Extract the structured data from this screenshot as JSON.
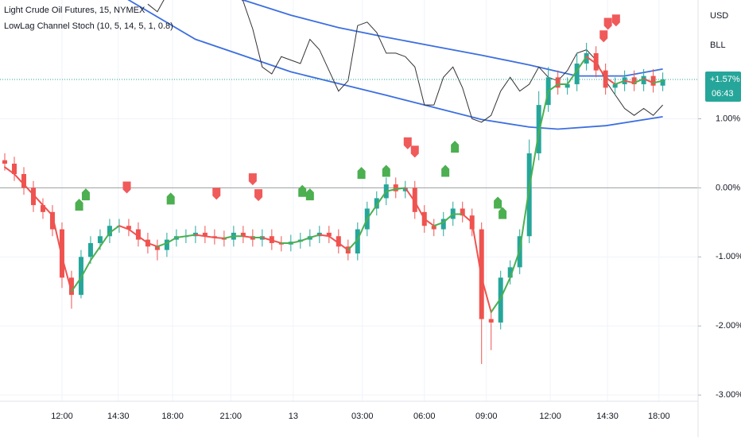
{
  "chart_data": {
    "type": "candlestick",
    "title": "Light Crude Oil Futures, 15, NYMEX",
    "indicator": "LowLag Channel Stoch (10, 5, 14, 5, 1, 0.8)",
    "currency": "USD",
    "scale_label": "BLL",
    "countdown": "06:43",
    "last_price": {
      "value": 1.57,
      "label": "+1.57%"
    },
    "up_color": "#26a69a",
    "down_color": "#ef5350",
    "open": [
      0.4,
      0.35,
      0.2,
      0.0,
      -0.25,
      -0.35,
      -0.6,
      -1.3,
      -1.55,
      -1.0,
      -0.8,
      -0.7,
      -0.55,
      -0.55,
      -0.6,
      -0.75,
      -0.85,
      -0.9,
      -0.75,
      -0.7,
      -0.7,
      -0.65,
      -0.7,
      -0.72,
      -0.75,
      -0.65,
      -0.7,
      -0.75,
      -0.7,
      -0.8,
      -0.82,
      -0.78,
      -0.75,
      -0.7,
      -0.65,
      -0.7,
      -0.85,
      -0.95,
      -0.6,
      -0.3,
      -0.15,
      0.05,
      -0.05,
      0.0,
      -0.35,
      -0.55,
      -0.6,
      -0.45,
      -0.3,
      -0.4,
      -0.6,
      -1.9,
      -1.95,
      -1.3,
      -1.15,
      -0.7,
      0.5,
      1.2,
      1.6,
      1.45,
      1.5,
      1.8,
      1.95,
      1.7,
      1.45,
      1.5,
      1.6,
      1.5,
      1.62,
      1.48
    ],
    "high": [
      0.5,
      0.45,
      0.3,
      0.1,
      -0.15,
      -0.25,
      -0.5,
      -1.2,
      -0.9,
      -0.7,
      -0.6,
      -0.45,
      -0.45,
      -0.45,
      -0.5,
      -0.65,
      -0.75,
      -0.65,
      -0.6,
      -0.6,
      -0.55,
      -0.55,
      -0.6,
      -0.62,
      -0.55,
      -0.55,
      -0.6,
      -0.6,
      -0.6,
      -0.7,
      -0.68,
      -0.65,
      -0.6,
      -0.55,
      -0.55,
      -0.6,
      -0.75,
      -0.5,
      -0.2,
      -0.05,
      0.15,
      0.15,
      0.1,
      0.1,
      -0.25,
      -0.45,
      -0.35,
      -0.2,
      -0.2,
      -0.3,
      -0.5,
      -1.8,
      -1.2,
      -1.05,
      -0.6,
      0.7,
      1.4,
      1.75,
      1.7,
      1.6,
      1.95,
      2.1,
      2.05,
      1.8,
      1.6,
      1.7,
      1.7,
      1.72,
      1.72,
      1.67
    ],
    "low": [
      0.25,
      0.1,
      -0.1,
      -0.35,
      -0.45,
      -0.7,
      -1.45,
      -1.75,
      -1.6,
      -1.1,
      -0.9,
      -0.8,
      -0.65,
      -0.7,
      -0.85,
      -0.95,
      -1.05,
      -1.0,
      -0.85,
      -0.8,
      -0.8,
      -0.8,
      -0.82,
      -0.85,
      -0.85,
      -0.8,
      -0.85,
      -0.85,
      -0.9,
      -0.92,
      -0.92,
      -0.88,
      -0.85,
      -0.8,
      -0.8,
      -0.95,
      -1.05,
      -1.05,
      -0.7,
      -0.4,
      -0.25,
      -0.15,
      -0.15,
      -0.45,
      -0.65,
      -0.7,
      -0.7,
      -0.55,
      -0.5,
      -0.7,
      -2.55,
      -2.35,
      -2.05,
      -1.4,
      -1.25,
      -0.8,
      0.4,
      1.1,
      1.35,
      1.35,
      1.4,
      1.7,
      1.6,
      1.35,
      1.35,
      1.4,
      1.4,
      1.4,
      1.38,
      1.4
    ],
    "close": [
      0.35,
      0.2,
      0.0,
      -0.25,
      -0.35,
      -0.6,
      -1.3,
      -1.55,
      -1.0,
      -0.8,
      -0.7,
      -0.55,
      -0.55,
      -0.6,
      -0.75,
      -0.85,
      -0.9,
      -0.75,
      -0.7,
      -0.7,
      -0.65,
      -0.7,
      -0.72,
      -0.75,
      -0.65,
      -0.7,
      -0.75,
      -0.7,
      -0.8,
      -0.82,
      -0.78,
      -0.75,
      -0.7,
      -0.65,
      -0.7,
      -0.85,
      -0.95,
      -0.6,
      -0.3,
      -0.15,
      0.05,
      -0.05,
      0.0,
      -0.35,
      -0.55,
      -0.6,
      -0.45,
      -0.3,
      -0.4,
      -0.6,
      -1.9,
      -1.95,
      -1.3,
      -1.15,
      -0.7,
      0.5,
      1.2,
      1.6,
      1.45,
      1.5,
      1.8,
      1.95,
      1.7,
      1.45,
      1.5,
      1.6,
      1.5,
      1.62,
      1.48,
      1.57
    ],
    "ma": {
      "up_color": "#4caf50",
      "down_color": "#ef5350",
      "values": [
        0.3,
        0.2,
        0.05,
        -0.1,
        -0.25,
        -0.4,
        -1.0,
        -1.5,
        -1.3,
        -1.05,
        -0.85,
        -0.65,
        -0.55,
        -0.6,
        -0.7,
        -0.8,
        -0.85,
        -0.8,
        -0.72,
        -0.7,
        -0.68,
        -0.7,
        -0.72,
        -0.73,
        -0.7,
        -0.7,
        -0.72,
        -0.72,
        -0.76,
        -0.8,
        -0.8,
        -0.77,
        -0.72,
        -0.68,
        -0.7,
        -0.8,
        -0.9,
        -0.75,
        -0.45,
        -0.25,
        -0.05,
        -0.02,
        0.0,
        -0.2,
        -0.45,
        -0.55,
        -0.5,
        -0.38,
        -0.38,
        -0.5,
        -1.3,
        -1.8,
        -1.6,
        -1.3,
        -0.9,
        0.0,
        0.8,
        1.4,
        1.5,
        1.5,
        1.7,
        1.9,
        1.8,
        1.6,
        1.5,
        1.55,
        1.52,
        1.58,
        1.52,
        1.55
      ]
    },
    "stoch": {
      "color": "#333333",
      "x": [
        15,
        16,
        17,
        18,
        19,
        20,
        21,
        22,
        23,
        24,
        25,
        26,
        27,
        28,
        29,
        30,
        31,
        32,
        33,
        34,
        35,
        36,
        37,
        38,
        39,
        40,
        41,
        42,
        43,
        44,
        45,
        46,
        47,
        48,
        49,
        50,
        51,
        52,
        53,
        54,
        55,
        56,
        57,
        58,
        59,
        60,
        61,
        62,
        63,
        64,
        65,
        66,
        67,
        68,
        69
      ],
      "values": [
        2.66,
        2.55,
        2.8,
        2.9,
        3.0,
        3.0,
        3.0,
        3.0,
        3.0,
        2.9,
        2.7,
        2.3,
        1.75,
        1.65,
        1.9,
        1.85,
        1.8,
        2.15,
        2.0,
        1.7,
        1.4,
        1.55,
        2.35,
        2.4,
        2.25,
        1.95,
        1.95,
        1.9,
        1.75,
        1.2,
        1.2,
        1.6,
        1.75,
        1.45,
        1.0,
        0.95,
        1.05,
        1.4,
        1.6,
        1.4,
        1.5,
        1.75,
        1.6,
        1.55,
        1.7,
        1.95,
        2.0,
        1.85,
        1.55,
        1.35,
        1.15,
        1.05,
        1.15,
        1.05,
        1.2
      ]
    },
    "channel_upper": {
      "color": "#3d6fe0",
      "x": [
        20,
        25,
        30,
        35,
        40,
        45,
        50,
        55,
        60,
        65,
        69
      ],
      "values": [
        2.95,
        2.72,
        2.5,
        2.32,
        2.18,
        2.05,
        1.92,
        1.78,
        1.62,
        1.62,
        1.72
      ]
    },
    "channel_lower": {
      "color": "#3d6fe0",
      "x": [
        10,
        13,
        20,
        30,
        40,
        50,
        55,
        58,
        63,
        69
      ],
      "values": [
        3.0,
        2.72,
        2.15,
        1.68,
        1.34,
        0.99,
        0.88,
        0.85,
        0.9,
        1.03
      ]
    },
    "buy_signals": {
      "color": "#4caf50",
      "x": [
        7.8,
        8.5,
        17.4,
        31.2,
        32,
        37.4,
        40,
        46.2,
        47.2,
        51.7,
        52.2
      ],
      "y": [
        -0.25,
        -0.1,
        -0.16,
        -0.05,
        -0.1,
        0.21,
        0.24,
        0.24,
        0.59,
        -0.22,
        -0.37
      ]
    },
    "sell_signals": {
      "color": "#f05a5a",
      "x": [
        12.8,
        22.2,
        26,
        26.6,
        42.25,
        43,
        62.8,
        63.25,
        64.1
      ],
      "y": [
        0.01,
        -0.08,
        0.13,
        -0.1,
        0.65,
        0.53,
        2.2,
        2.38,
        2.43
      ]
    },
    "zero_line_color": "#9e9e9e",
    "xlim": [
      -0.5,
      72.7
    ],
    "ylim": [
      -3.09,
      2.72
    ],
    "xticks": [
      {
        "value": 6,
        "label": "12:00"
      },
      {
        "value": 11.9,
        "label": "14:30"
      },
      {
        "value": 17.6,
        "label": "18:00"
      },
      {
        "value": 23.7,
        "label": "21:00"
      },
      {
        "value": 30.25,
        "label": "13"
      },
      {
        "value": 37.5,
        "label": "03:00"
      },
      {
        "value": 44,
        "label": "06:00"
      },
      {
        "value": 50.5,
        "label": "09:00"
      },
      {
        "value": 57.2,
        "label": "12:00"
      },
      {
        "value": 63.2,
        "label": "14:30"
      },
      {
        "value": 68.6,
        "label": "18:00"
      }
    ],
    "yticks": [
      {
        "value": -3,
        "label": "-3.00%"
      },
      {
        "value": -2,
        "label": "-2.00%"
      },
      {
        "value": -1,
        "label": "-1.00%"
      },
      {
        "value": 0,
        "label": "0.00%"
      },
      {
        "value": 1,
        "label": "1.00%"
      }
    ],
    "grid": true
  }
}
